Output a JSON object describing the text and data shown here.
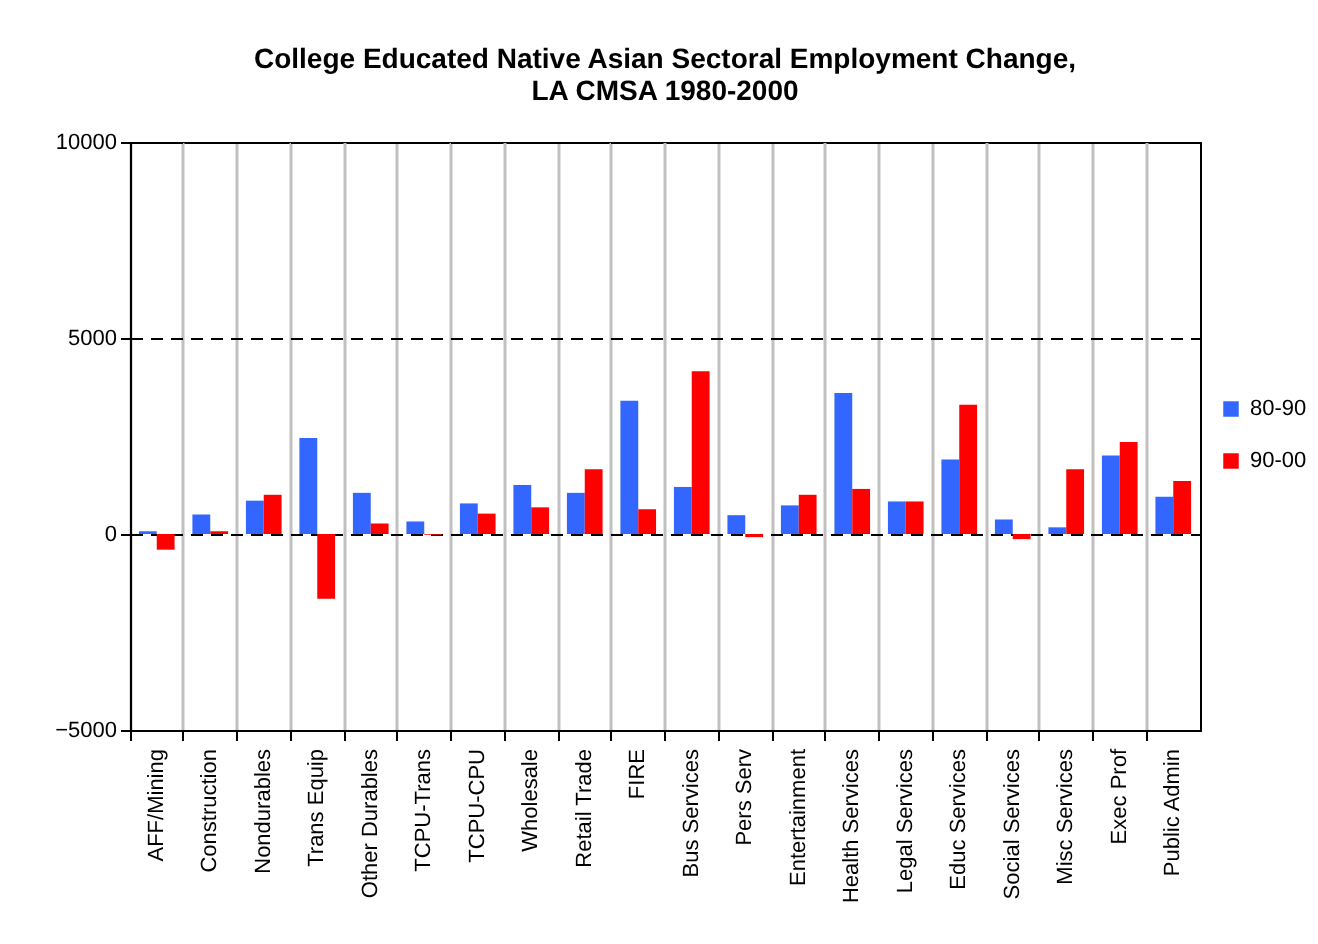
{
  "chart_data": {
    "type": "bar",
    "title": "College Educated Native Asian Sectoral Employment Change,\nLA CMSA 1980-2000",
    "categories": [
      "AFF/Mining",
      "Construction",
      "Nondurables",
      "Trans Equip",
      "Other Durables",
      "TCPU-Trans",
      "TCPU-CPU",
      "Wholesale",
      "Retail Trade",
      "FIRE",
      "Bus Services",
      "Pers Serv",
      "Entertainment",
      "Health Services",
      "Legal Services",
      "Educ Services",
      "Social Services",
      "Misc Services",
      "Exec Prof",
      "Public Admin"
    ],
    "series": [
      {
        "name": "80-90",
        "color": "#3366ff",
        "values": [
          70,
          500,
          850,
          2450,
          1050,
          320,
          780,
          1250,
          1050,
          3400,
          1200,
          480,
          730,
          3600,
          830,
          1900,
          370,
          170,
          2000,
          950
        ]
      },
      {
        "name": "90-00",
        "color": "#ff0000",
        "values": [
          -400,
          70,
          1000,
          -1650,
          270,
          -20,
          520,
          680,
          1650,
          630,
          4150,
          -80,
          1000,
          1150,
          830,
          3300,
          -130,
          1650,
          2350,
          1350
        ]
      }
    ],
    "ylim": [
      -5000,
      10000
    ],
    "yticks": [
      -5000,
      0,
      5000,
      10000
    ],
    "grid": true,
    "legend": "right"
  }
}
